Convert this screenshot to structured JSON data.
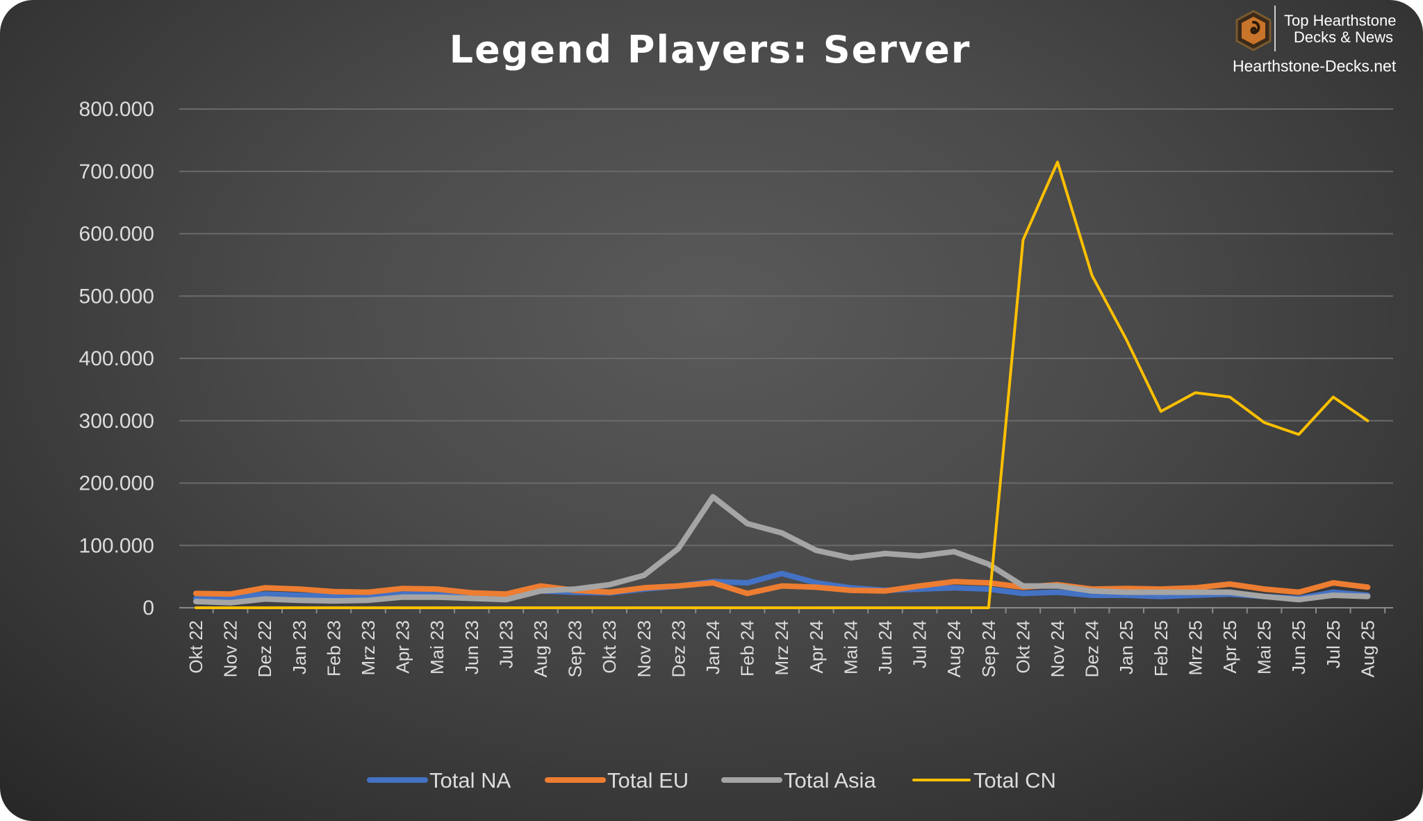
{
  "chart_data": {
    "type": "line",
    "title": "Legend Players: Server",
    "xlabel": "",
    "ylabel": "",
    "ylim": [
      0,
      800000
    ],
    "yticks": [
      0,
      100000,
      200000,
      300000,
      400000,
      500000,
      600000,
      700000,
      800000
    ],
    "ytick_labels": [
      "0",
      "100.000",
      "200.000",
      "300.000",
      "400.000",
      "500.000",
      "600.000",
      "700.000",
      "800.000"
    ],
    "grid": true,
    "legend_position": "bottom",
    "categories": [
      "Okt 22",
      "Nov 22",
      "Dez 22",
      "Jan 23",
      "Feb 23",
      "Mrz 23",
      "Apr 23",
      "Mai 23",
      "Jun 23",
      "Jul 23",
      "Aug 23",
      "Sep 23",
      "Okt 23",
      "Nov 23",
      "Dez 23",
      "Jan 24",
      "Feb 24",
      "Mrz 24",
      "Apr 24",
      "Mai 24",
      "Jun 24",
      "Jul 24",
      "Aug 24",
      "Sep 24",
      "Okt 24",
      "Nov 24",
      "Dez 24",
      "Jan 25",
      "Feb 25",
      "Mrz 25",
      "Apr 25",
      "Mai 25",
      "Jun 25",
      "Jul 25",
      "Aug 25"
    ],
    "series": [
      {
        "name": "Total NA",
        "color": "#4472C4",
        "values": [
          15000,
          16000,
          22000,
          20000,
          18000,
          18000,
          22000,
          22000,
          20000,
          19000,
          27000,
          25000,
          24000,
          30000,
          35000,
          42000,
          40000,
          55000,
          40000,
          32000,
          28000,
          30000,
          32000,
          30000,
          23000,
          25000,
          20000,
          20000,
          18000,
          20000,
          22000,
          18000,
          15000,
          25000,
          20000
        ]
      },
      {
        "name": "Total EU",
        "color": "#ED7D31",
        "values": [
          23000,
          22000,
          32000,
          30000,
          26000,
          25000,
          31000,
          30000,
          24000,
          22000,
          35000,
          28000,
          25000,
          32000,
          35000,
          40000,
          23000,
          35000,
          33000,
          28000,
          27000,
          35000,
          42000,
          40000,
          33000,
          37000,
          30000,
          31000,
          30000,
          32000,
          38000,
          30000,
          25000,
          40000,
          33000
        ]
      },
      {
        "name": "Total Asia",
        "color": "#A5A5A5",
        "values": [
          10000,
          8000,
          14000,
          12000,
          11000,
          12000,
          17000,
          17000,
          15000,
          13000,
          27000,
          30000,
          37000,
          52000,
          95000,
          178000,
          135000,
          120000,
          92000,
          80000,
          87000,
          83000,
          90000,
          70000,
          35000,
          35000,
          27000,
          25000,
          25000,
          25000,
          25000,
          18000,
          13000,
          20000,
          18000
        ]
      },
      {
        "name": "Total CN",
        "color": "#FFC000",
        "values": [
          0,
          0,
          0,
          0,
          0,
          0,
          0,
          0,
          0,
          0,
          0,
          0,
          0,
          0,
          0,
          0,
          0,
          0,
          0,
          0,
          0,
          0,
          0,
          0,
          590000,
          715000,
          533000,
          430000,
          315000,
          345000,
          338000,
          297000,
          278000,
          338000,
          300000
        ]
      }
    ]
  },
  "branding": {
    "line1": "Top Hearthstone",
    "line2": "Decks & News",
    "url": "Hearthstone-Decks.net",
    "logo_icon": "hearthstone-logo-icon"
  }
}
